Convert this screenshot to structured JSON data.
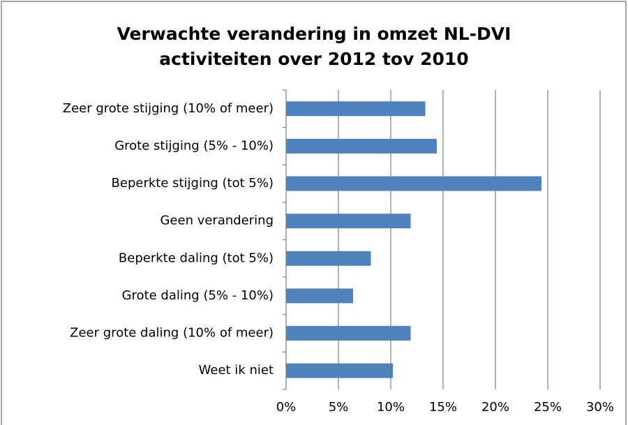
{
  "chart_data": {
    "type": "bar",
    "orientation": "horizontal",
    "title": [
      "Verwachte verandering in omzet NL-DVI",
      "activiteiten over 2012 tov 2010"
    ],
    "categories": [
      "Zeer grote stijging (10% of meer)",
      "Grote stijging (5% - 10%)",
      "Beperkte stijging (tot 5%)",
      "Geen verandering",
      "Beperkte daling (tot 5%)",
      "Grote daling (5% - 10%)",
      "Zeer grote daling (10% of meer)",
      "Weet ik niet"
    ],
    "values": [
      13.3,
      14.4,
      24.4,
      11.9,
      8.1,
      6.4,
      11.9,
      10.2
    ],
    "color": "#4f81bd",
    "xlim": [
      0,
      30
    ],
    "xticks": [
      {
        "value": 0,
        "label": "0%"
      },
      {
        "value": 5,
        "label": "5%"
      },
      {
        "value": 10,
        "label": "10%"
      },
      {
        "value": 15,
        "label": "15%"
      },
      {
        "value": 20,
        "label": "20%"
      },
      {
        "value": 25,
        "label": "25%"
      },
      {
        "value": 30,
        "label": "30%"
      }
    ],
    "grid": true
  }
}
